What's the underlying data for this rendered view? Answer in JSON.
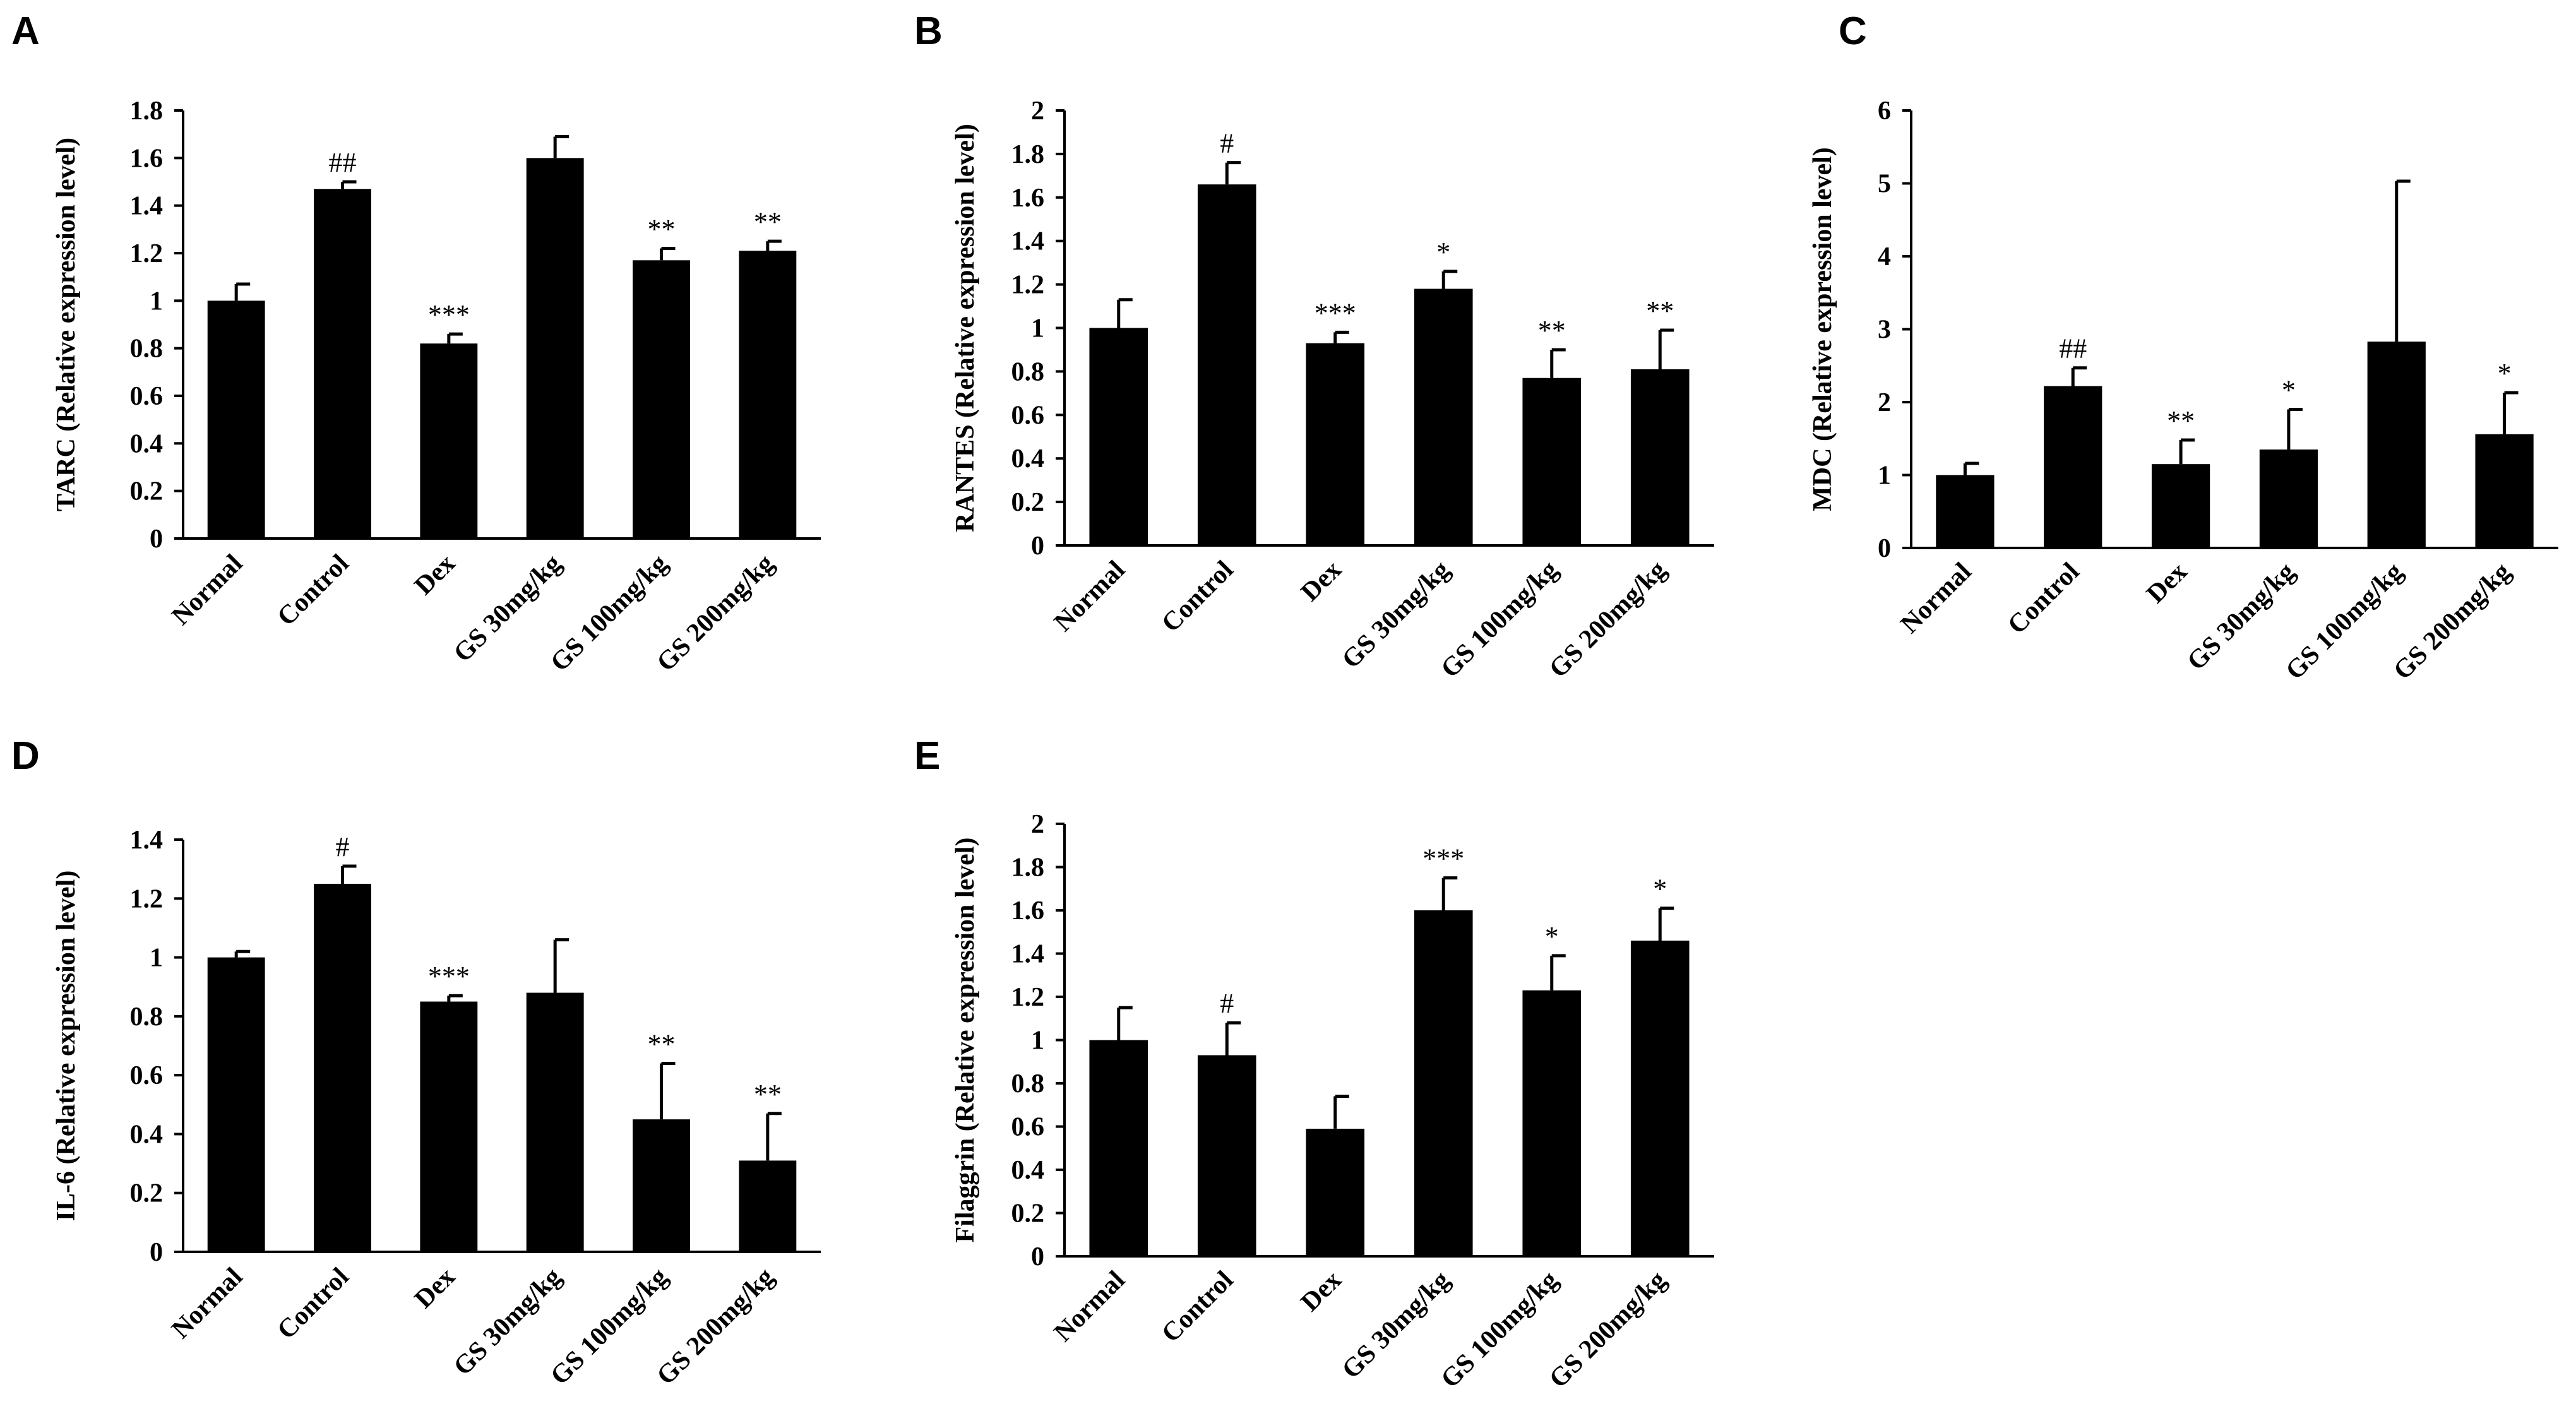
{
  "figure": {
    "chart_data": [
      {
        "panel": "A",
        "type": "bar",
        "categories": [
          "Normal",
          "Control",
          "Dex",
          "GS 30mg/kg",
          "GS 100mg/kg",
          "GS 200mg/kg"
        ],
        "values": [
          1.0,
          1.47,
          0.82,
          1.6,
          1.17,
          1.21
        ],
        "errors": [
          0.07,
          0.03,
          0.04,
          0.09,
          0.05,
          0.04
        ],
        "annotations": [
          "",
          "##",
          "***",
          "",
          "**",
          "**"
        ],
        "ylabel": "TARC (Relative expression level)",
        "xlabel": "",
        "ylim": [
          0,
          1.8
        ],
        "yticks": [
          0,
          0.2,
          0.4,
          0.6,
          0.8,
          1,
          1.2,
          1.4,
          1.6,
          1.8
        ],
        "ytick_labels": [
          "0",
          "0.2",
          "0.4",
          "0.6",
          "0.8",
          "1",
          "1.2",
          "1.4",
          "1.6",
          "1.8"
        ]
      },
      {
        "panel": "B",
        "type": "bar",
        "categories": [
          "Normal",
          "Control",
          "Dex",
          "GS 30mg/kg",
          "GS 100mg/kg",
          "GS 200mg/kg"
        ],
        "values": [
          1.0,
          1.66,
          0.93,
          1.18,
          0.77,
          0.81
        ],
        "errors": [
          0.13,
          0.1,
          0.05,
          0.08,
          0.13,
          0.18
        ],
        "annotations": [
          "",
          "#",
          "***",
          "*",
          "**",
          "**"
        ],
        "ylabel": "RANTES (Relative expression level)",
        "xlabel": "",
        "ylim": [
          0,
          2
        ],
        "yticks": [
          0,
          0.2,
          0.4,
          0.6,
          0.8,
          1,
          1.2,
          1.4,
          1.6,
          1.8,
          2
        ],
        "ytick_labels": [
          "0",
          "0.2",
          "0.4",
          "0.6",
          "0.8",
          "1",
          "1.2",
          "1.4",
          "1.6",
          "1.8",
          "2"
        ]
      },
      {
        "panel": "C",
        "type": "bar",
        "categories": [
          "Normal",
          "Control",
          "Dex",
          "GS 30mg/kg",
          "GS 100mg/kg",
          "GS 200mg/kg"
        ],
        "values": [
          1.0,
          2.22,
          1.15,
          1.35,
          2.83,
          1.56
        ],
        "errors": [
          0.16,
          0.25,
          0.33,
          0.55,
          2.2,
          0.57
        ],
        "annotations": [
          "",
          "##",
          "**",
          "*",
          "",
          "*"
        ],
        "ylabel": "MDC (Relative expression level)",
        "xlabel": "",
        "ylim": [
          0,
          6
        ],
        "yticks": [
          0,
          1,
          2,
          3,
          4,
          5,
          6
        ],
        "ytick_labels": [
          "0",
          "1",
          "2",
          "3",
          "4",
          "5",
          "6"
        ]
      },
      {
        "panel": "D",
        "type": "bar",
        "categories": [
          "Normal",
          "Control",
          "Dex",
          "GS 30mg/kg",
          "GS 100mg/kg",
          "GS 200mg/kg"
        ],
        "values": [
          1.0,
          1.25,
          0.85,
          0.88,
          0.45,
          0.31
        ],
        "errors": [
          0.02,
          0.06,
          0.02,
          0.18,
          0.19,
          0.16
        ],
        "annotations": [
          "",
          "#",
          "***",
          "",
          "**",
          "**"
        ],
        "ylabel": "IL-6 (Relative expression level)",
        "xlabel": "",
        "ylim": [
          0,
          1.4
        ],
        "yticks": [
          0,
          0.2,
          0.4,
          0.6,
          0.8,
          1,
          1.2,
          1.4
        ],
        "ytick_labels": [
          "0",
          "0.2",
          "0.4",
          "0.6",
          "0.8",
          "1",
          "1.2",
          "1.4"
        ]
      },
      {
        "panel": "E",
        "type": "bar",
        "categories": [
          "Normal",
          "Control",
          "Dex",
          "GS 30mg/kg",
          "GS 100mg/kg",
          "GS 200mg/kg"
        ],
        "values": [
          1.0,
          0.93,
          0.59,
          1.6,
          1.23,
          1.46
        ],
        "errors": [
          0.15,
          0.15,
          0.15,
          0.15,
          0.16,
          0.15
        ],
        "annotations": [
          "",
          "#",
          "",
          "***",
          "*",
          "*"
        ],
        "ylabel": "Filaggrin (Relative expression level)",
        "xlabel": "",
        "ylim": [
          0,
          2
        ],
        "yticks": [
          0,
          0.2,
          0.4,
          0.6,
          0.8,
          1,
          1.2,
          1.4,
          1.6,
          1.8,
          2
        ],
        "ytick_labels": [
          "0",
          "0.2",
          "0.4",
          "0.6",
          "0.8",
          "1",
          "1.2",
          "1.4",
          "1.6",
          "1.8",
          "2"
        ]
      }
    ],
    "colors": {
      "bar": "#000000",
      "axis": "#000000",
      "background": "#ffffff"
    }
  }
}
